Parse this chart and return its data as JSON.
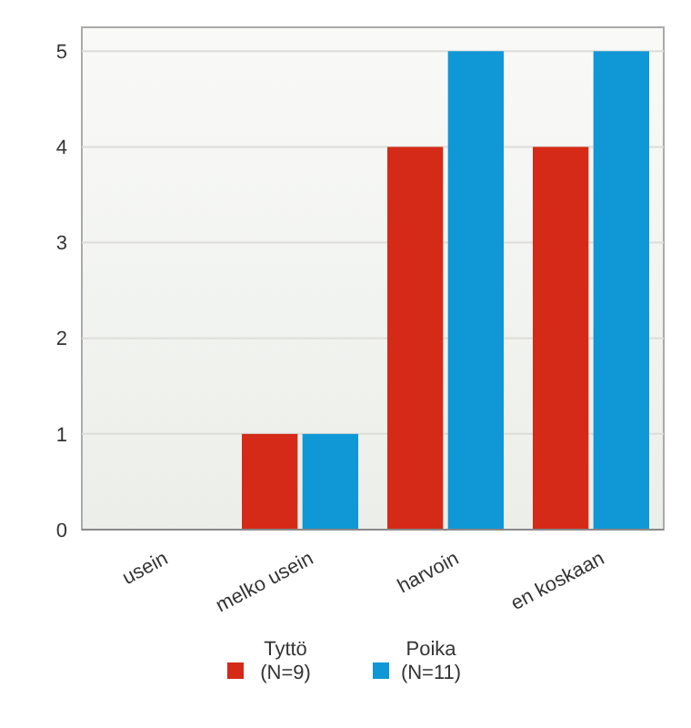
{
  "chart_data": {
    "type": "bar",
    "categories": [
      "usein",
      "melko usein",
      "harvoin",
      "en koskaan"
    ],
    "series": [
      {
        "name": "Tyttö\n(N=9)",
        "color": "#d42a17",
        "values": [
          0,
          1,
          4,
          4
        ]
      },
      {
        "name": "Poika\n(N=11)",
        "color": "#0f97d6",
        "values": [
          0,
          1,
          5,
          5
        ]
      }
    ],
    "ylim": [
      0,
      5.25
    ],
    "yticks": [
      0,
      1,
      2,
      3,
      4,
      5
    ],
    "grid": "y",
    "legend": "bottom"
  }
}
